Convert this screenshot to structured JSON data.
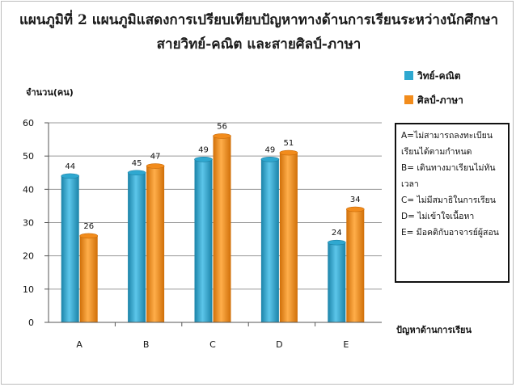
{
  "title_lines": [
    "แผนภูมิที่ 2 แผนภูมิแสดงการเปรียบเทียบปัญหาทางด้านการเรียนระหว่างนักศึกษา",
    "สายวิทย์-คณิต และสายศิลป์-ภาษา"
  ],
  "notes": [
    "A=ไม่สามารถลงทะเบียนเรียนได้ตามกำหนด",
    "B= เดินทางมาเรียนไม่ทันเวลา",
    "C= ไม่มีสมาธิในการเรียน",
    "D= ไม่เข้าใจเนื้อหา",
    "E= มีอคติกับอาจารย์ผู้สอน"
  ],
  "colors": {
    "series1": "#2fa8d0",
    "series1_dark": "#1a7fa3",
    "series2": "#f28c1c",
    "series2_dark": "#c96a08"
  },
  "chart_data": {
    "type": "bar",
    "title": "แผนภูมิที่ 2 แผนภูมิแสดงการเปรียบเทียบปัญหาทางด้านการเรียนระหว่างนักศึกษา สายวิทย์-คณิต และสายศิลป์-ภาษา",
    "xlabel": "ปัญหาด้านการเรียน",
    "ylabel": "จำนวน(คน)",
    "categories": [
      "A",
      "B",
      "C",
      "D",
      "E"
    ],
    "series": [
      {
        "name": "วิทย์-คณิต",
        "values": [
          44,
          45,
          49,
          49,
          24
        ]
      },
      {
        "name": "ศิลป์-ภาษา",
        "values": [
          26,
          47,
          56,
          51,
          34
        ]
      }
    ],
    "ylim": [
      0,
      60
    ],
    "yticks": [
      0,
      10,
      20,
      30,
      40,
      50,
      60
    ],
    "grid": true,
    "legend": "top-right"
  }
}
